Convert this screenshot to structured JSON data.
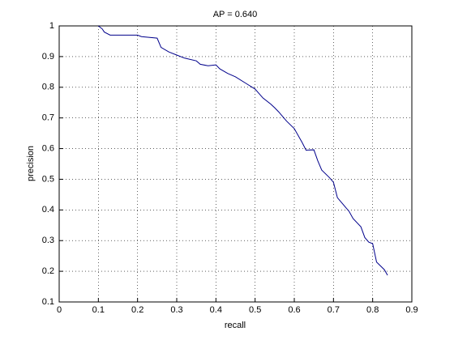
{
  "chart_data": {
    "type": "line",
    "title": "AP = 0.640",
    "x_label": "recall",
    "y_label": "precision",
    "x": [
      0.1,
      0.11,
      0.115,
      0.13,
      0.2,
      0.21,
      0.25,
      0.26,
      0.28,
      0.3,
      0.32,
      0.35,
      0.36,
      0.38,
      0.4,
      0.41,
      0.43,
      0.45,
      0.48,
      0.5,
      0.52,
      0.54,
      0.55,
      0.56,
      0.58,
      0.6,
      0.62,
      0.63,
      0.65,
      0.66,
      0.67,
      0.69,
      0.7,
      0.71,
      0.73,
      0.74,
      0.75,
      0.77,
      0.78,
      0.79,
      0.8,
      0.81,
      0.83,
      0.838
    ],
    "series": [
      {
        "name": "precision",
        "color": "#00008b",
        "values": [
          1.0,
          0.99,
          0.98,
          0.97,
          0.97,
          0.965,
          0.96,
          0.93,
          0.915,
          0.905,
          0.895,
          0.886,
          0.875,
          0.87,
          0.873,
          0.86,
          0.845,
          0.834,
          0.81,
          0.794,
          0.765,
          0.745,
          0.733,
          0.72,
          0.69,
          0.665,
          0.62,
          0.595,
          0.596,
          0.56,
          0.53,
          0.505,
          0.49,
          0.44,
          0.41,
          0.395,
          0.372,
          0.345,
          0.31,
          0.295,
          0.29,
          0.23,
          0.205,
          0.187
        ]
      }
    ],
    "xlim": [
      0,
      0.9
    ],
    "ylim": [
      0.1,
      1
    ],
    "xticks": [
      0,
      0.1,
      0.2,
      0.3,
      0.4,
      0.5,
      0.6,
      0.7,
      0.8,
      0.9
    ],
    "yticks": [
      0.1,
      0.2,
      0.3,
      0.4,
      0.5,
      0.6,
      0.7,
      0.8,
      0.9,
      1
    ],
    "grid": true
  }
}
